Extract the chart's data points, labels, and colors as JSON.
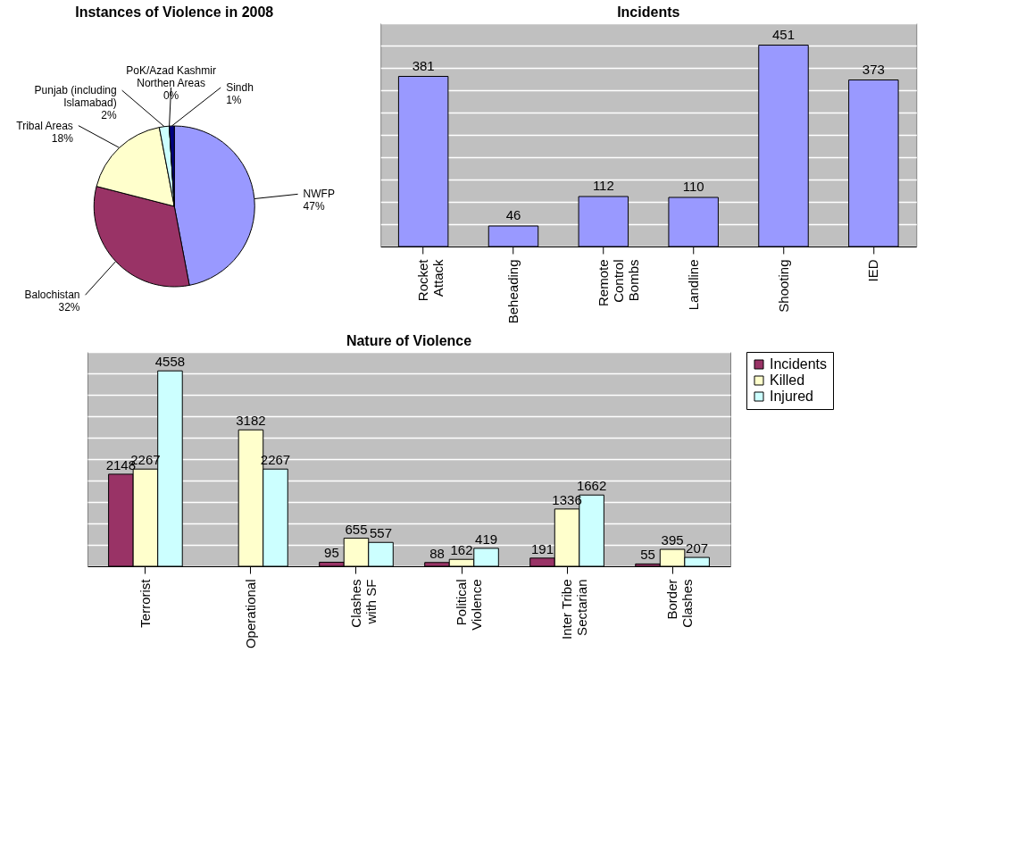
{
  "chart_data": [
    {
      "type": "pie",
      "title": "Instances of Violence in 2008",
      "categories": [
        "NWFP",
        "Balochistan",
        "Tribal Areas",
        "Punjab (including\nIslamabad)",
        "PoK/Azad Kashmir\nNorthen Areas",
        "Sindh"
      ],
      "values": [
        47,
        32,
        18,
        2,
        0,
        1
      ],
      "colors": [
        "#9999ff",
        "#993366",
        "#ffffcc",
        "#ccffff",
        "#660066",
        "#000080"
      ],
      "value_labels": [
        "47%",
        "32%",
        "18%",
        "2%",
        "0%",
        "1%"
      ],
      "legend": false
    },
    {
      "type": "bar",
      "title": "Incidents",
      "categories": [
        "Rocket\nAttack",
        "Beheading",
        "Remote\nControl\nBombs",
        "Landline",
        "Shooting",
        "IED"
      ],
      "values": [
        381,
        46,
        112,
        110,
        451,
        373
      ],
      "color": "#9999ff",
      "tick_labels": "x",
      "grid": "y",
      "data_labels": true
    },
    {
      "type": "bar",
      "title": "Nature of Violence",
      "categories": [
        "Terrorist",
        "Operational",
        "Clashes\nwith SF",
        "Political\nViolence",
        "Inter Tribe\nSectarian",
        "Border\nClashes"
      ],
      "series": [
        {
          "name": "Incidents",
          "color": "#993366",
          "values": [
            2148,
            null,
            95,
            88,
            191,
            55
          ]
        },
        {
          "name": "Killed",
          "color": "#ffffcc",
          "values": [
            2267,
            3182,
            655,
            162,
            1336,
            395
          ]
        },
        {
          "name": "Injured",
          "color": "#ccffff",
          "values": [
            4558,
            2267,
            557,
            419,
            1662,
            207
          ]
        }
      ],
      "tick_labels": "x",
      "grid": "y",
      "data_labels": true,
      "legend": "right"
    }
  ]
}
